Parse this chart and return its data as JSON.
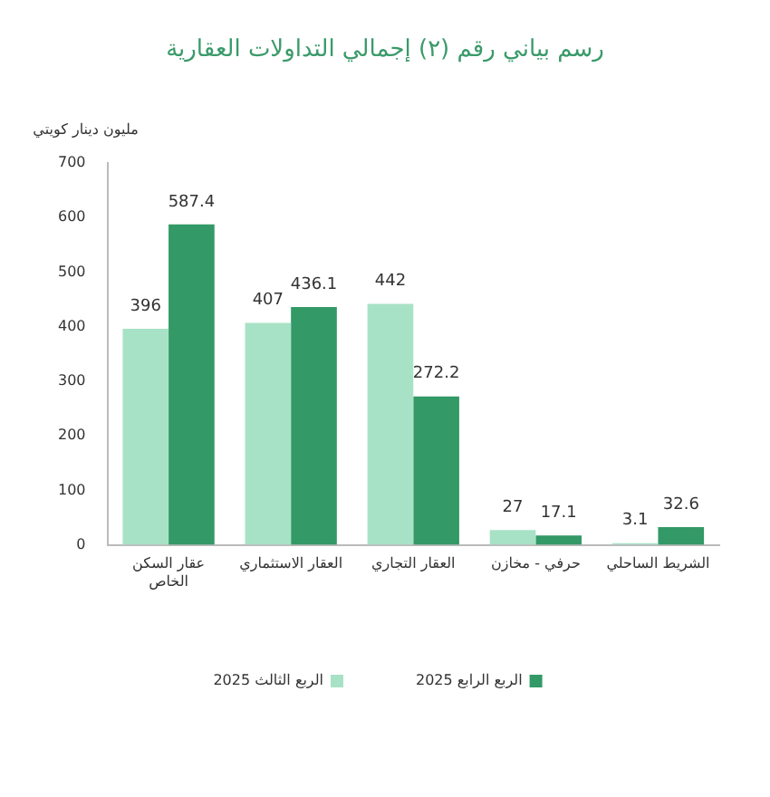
{
  "chart_data": {
    "type": "bar",
    "title": "رسم بياني رقم (٢) إجمالي التداولات العقارية",
    "ylabel": "مليون دينار كويتي",
    "categories": [
      "عقار السكن الخاص",
      "العقار الاستثماري",
      "العقار التجاري",
      "حرفي - مخازن",
      "الشريط الساحلي"
    ],
    "series": [
      {
        "name": "الربع الثالث 2025",
        "color": "#a8e2c6",
        "values": [
          396,
          407,
          442,
          27,
          3.1
        ]
      },
      {
        "name": "الربع الرابع 2025",
        "color": "#339966",
        "values": [
          587.4,
          436.1,
          272.2,
          17.1,
          32.6
        ]
      }
    ],
    "ylim": [
      0,
      700
    ],
    "yticks": [
      0,
      100,
      200,
      300,
      400,
      500,
      600,
      700
    ],
    "grid": false,
    "legend": "bottom",
    "data_labels": true
  }
}
